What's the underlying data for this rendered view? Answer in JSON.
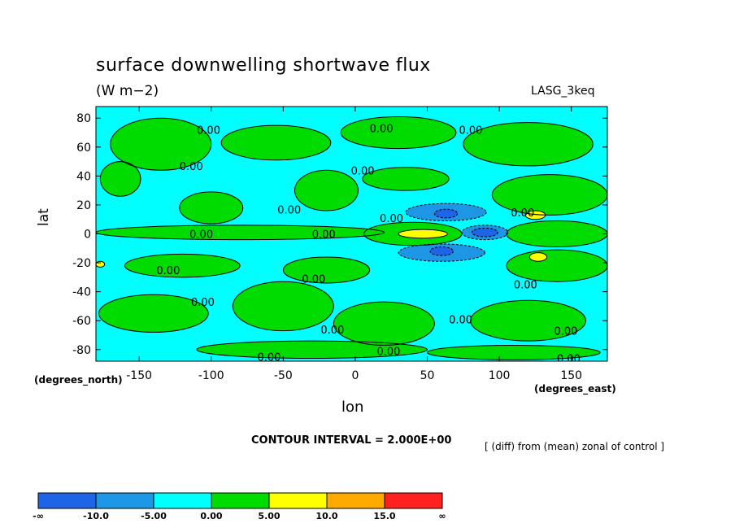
{
  "chart_data": {
    "type": "heatmap",
    "title": "surface downwelling shortwave flux",
    "units": "(W m−2)",
    "run_label": "LASG_3keq",
    "xlabel": "lon",
    "ylabel": "lat",
    "x_unit_label": "(degrees_east)",
    "y_unit_label": "(degrees_north)",
    "xlim": [
      -180,
      175
    ],
    "ylim": [
      -88,
      88
    ],
    "x_ticks": [
      -150,
      -100,
      -50,
      0,
      50,
      100,
      150
    ],
    "y_ticks": [
      80,
      60,
      40,
      20,
      0,
      -20,
      -40,
      -60,
      -80
    ],
    "contour_interval_text": "CONTOUR INTERVAL = 2.000E+00",
    "operation_text": "[ (diff) from (mean) zonal of control ]",
    "contour_labels": [
      {
        "lon": -110,
        "lat": 72,
        "text": "0.00"
      },
      {
        "lon": 10,
        "lat": 73,
        "text": "0.00"
      },
      {
        "lon": 72,
        "lat": 72,
        "text": "0.00"
      },
      {
        "lon": -122,
        "lat": 47,
        "text": "0.00"
      },
      {
        "lon": -3,
        "lat": 44,
        "text": "0.00"
      },
      {
        "lon": -54,
        "lat": 17,
        "text": "0.00"
      },
      {
        "lon": 17,
        "lat": 11,
        "text": "0.00"
      },
      {
        "lon": 108,
        "lat": 15,
        "text": "0.00"
      },
      {
        "lon": -115,
        "lat": 0,
        "text": "0.00"
      },
      {
        "lon": -30,
        "lat": 0,
        "text": "0.00"
      },
      {
        "lon": -138,
        "lat": -25,
        "text": "0.00"
      },
      {
        "lon": -37,
        "lat": -31,
        "text": "0.00"
      },
      {
        "lon": 110,
        "lat": -35,
        "text": "0.00"
      },
      {
        "lon": -114,
        "lat": -47,
        "text": "0.00"
      },
      {
        "lon": 65,
        "lat": -59,
        "text": "0.00"
      },
      {
        "lon": -24,
        "lat": -66,
        "text": "0.00"
      },
      {
        "lon": 138,
        "lat": -67,
        "text": "0.00"
      },
      {
        "lon": 15,
        "lat": -81,
        "text": "0.00"
      },
      {
        "lon": -68,
        "lat": -85,
        "text": "0.00"
      },
      {
        "lon": 140,
        "lat": -86,
        "text": "0.00"
      }
    ],
    "colorbar": {
      "levels": [
        "-∞",
        "-10.0",
        "-5.00",
        "0.00",
        "5.00",
        "10.0",
        "15.0",
        "∞"
      ],
      "colors": [
        "#1e64e6",
        "#1e96e6",
        "#00ffff",
        "#00dc00",
        "#ffff00",
        "#ffaa00",
        "#ff2020"
      ]
    },
    "regions": [
      {
        "color": "#1e64e6",
        "lon": 63,
        "lat": 14,
        "rx": 8,
        "ry": 3
      },
      {
        "color": "#1e64e6",
        "lon": 90,
        "lat": 1,
        "rx": 9,
        "ry": 3
      },
      {
        "color": "#1e64e6",
        "lon": 60,
        "lat": -12,
        "rx": 8,
        "ry": 3
      },
      {
        "color": "#1e96e6",
        "lon": 63,
        "lat": 15,
        "rx": 28,
        "ry": 6
      },
      {
        "color": "#1e96e6",
        "lon": 60,
        "lat": -13,
        "rx": 30,
        "ry": 6
      },
      {
        "color": "#1e96e6",
        "lon": 90,
        "lat": 1,
        "rx": 16,
        "ry": 5
      },
      {
        "color": "#ffff00",
        "lon": 47,
        "lat": 0,
        "rx": 17,
        "ry": 3
      },
      {
        "color": "#ffff00",
        "lon": 125,
        "lat": 13,
        "rx": 7,
        "ry": 3
      },
      {
        "color": "#ffff00",
        "lon": 127,
        "lat": -16,
        "rx": 6,
        "ry": 3
      },
      {
        "color": "#ffff00",
        "lon": -177,
        "lat": -21,
        "rx": 3,
        "ry": 2
      },
      {
        "color": "#00dc00",
        "lon": -135,
        "lat": 62,
        "rx": 35,
        "ry": 18
      },
      {
        "color": "#00dc00",
        "lon": -55,
        "lat": 63,
        "rx": 38,
        "ry": 12
      },
      {
        "color": "#00dc00",
        "lon": 30,
        "lat": 70,
        "rx": 40,
        "ry": 11
      },
      {
        "color": "#00dc00",
        "lon": 120,
        "lat": 62,
        "rx": 45,
        "ry": 15
      },
      {
        "color": "#00dc00",
        "lon": -163,
        "lat": 38,
        "rx": 14,
        "ry": 12
      },
      {
        "color": "#00dc00",
        "lon": -100,
        "lat": 18,
        "rx": 22,
        "ry": 11
      },
      {
        "color": "#00dc00",
        "lon": -20,
        "lat": 30,
        "rx": 22,
        "ry": 14
      },
      {
        "color": "#00dc00",
        "lon": 35,
        "lat": 38,
        "rx": 30,
        "ry": 8
      },
      {
        "color": "#00dc00",
        "lon": 135,
        "lat": 27,
        "rx": 40,
        "ry": 14
      },
      {
        "color": "#00dc00",
        "lon": -80,
        "lat": 1,
        "rx": 100,
        "ry": 5
      },
      {
        "color": "#00dc00",
        "lon": 140,
        "lat": 0,
        "rx": 35,
        "ry": 9
      },
      {
        "color": "#00dc00",
        "lon": 40,
        "lat": 0,
        "rx": 34,
        "ry": 8
      },
      {
        "color": "#00dc00",
        "lon": -120,
        "lat": -22,
        "rx": 40,
        "ry": 8
      },
      {
        "color": "#00dc00",
        "lon": -20,
        "lat": -25,
        "rx": 30,
        "ry": 9
      },
      {
        "color": "#00dc00",
        "lon": 140,
        "lat": -22,
        "rx": 35,
        "ry": 11
      },
      {
        "color": "#00dc00",
        "lon": -140,
        "lat": -55,
        "rx": 38,
        "ry": 13
      },
      {
        "color": "#00dc00",
        "lon": -50,
        "lat": -50,
        "rx": 35,
        "ry": 17
      },
      {
        "color": "#00dc00",
        "lon": 20,
        "lat": -62,
        "rx": 35,
        "ry": 15
      },
      {
        "color": "#00dc00",
        "lon": 120,
        "lat": -60,
        "rx": 40,
        "ry": 14
      },
      {
        "color": "#00dc00",
        "lon": -30,
        "lat": -80,
        "rx": 80,
        "ry": 6
      },
      {
        "color": "#00dc00",
        "lon": 110,
        "lat": -82,
        "rx": 60,
        "ry": 5
      }
    ],
    "grid": false,
    "background_color": "#00ffff"
  }
}
